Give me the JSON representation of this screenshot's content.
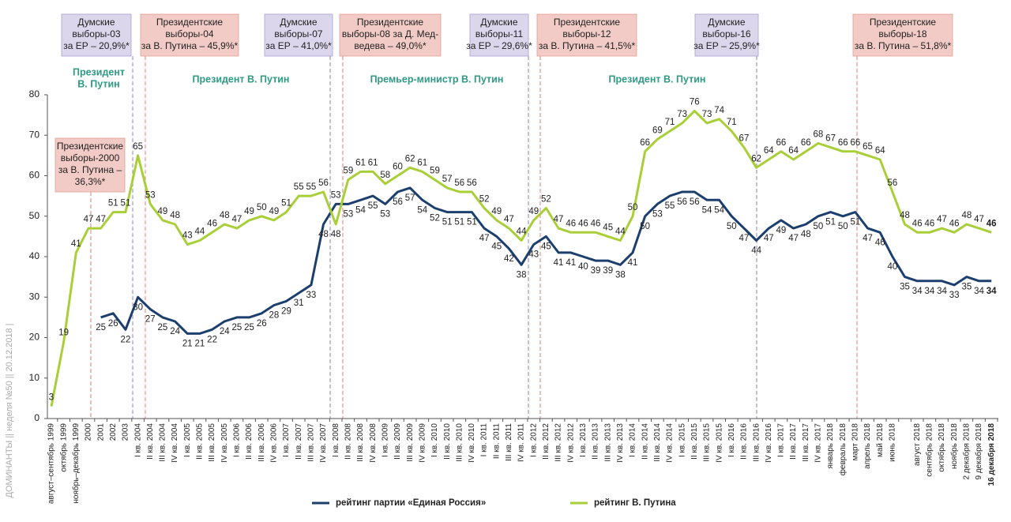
{
  "chart_data": {
    "type": "line",
    "categories": [
      "август–сентябрь 1999",
      "октябрь 1999",
      "ноябрь–декабрь 1999",
      "2000",
      "2001",
      "2002",
      "2003",
      "I кв. 2004",
      "II кв. 2004",
      "III кв. 2004",
      "IV кв. 2004",
      "I кв. 2005",
      "II кв. 2005",
      "III кв. 2005",
      "IV кв. 2005",
      "I кв. 2006",
      "II кв. 2006",
      "III кв. 2006",
      "IV кв. 2006",
      "I кв. 2007",
      "II кв. 2007",
      "III кв. 2007",
      "IV кв. 2007",
      "I кв. 2008",
      "II кв. 2008",
      "III кв. 2008",
      "IV кв. 2008",
      "I кв. 2009",
      "II кв. 2009",
      "III кв. 2009",
      "IV кв. 2009",
      "I кв. 2010",
      "II кв. 2010",
      "III кв. 2010",
      "IV кв. 2010",
      "I кв. 2011",
      "II кв. 2011",
      "III кв. 2011",
      "IV кв. 2011",
      "I кв. 2012",
      "II кв. 2012",
      "III кв. 2012",
      "IV кв. 2012",
      "I кв. 2013",
      "II кв. 2013",
      "III кв. 2013",
      "IV кв. 2013",
      "I кв. 2014",
      "II кв. 2014",
      "III кв. 2014",
      "IV кв. 2014",
      "I кв. 2015",
      "II кв. 2015",
      "III кв. 2015",
      "IV кв. 2015",
      "I кв. 2016",
      "II кв. 2016",
      "III кв. 2016",
      "IV кв. 2016",
      "I кв. 2017",
      "II кв. 2017",
      "III кв. 2017",
      "IV кв. 2017",
      "январь 2018",
      "февраль 2018",
      "март 2018",
      "апрель 2018",
      "май 2018",
      "июнь 2018",
      null,
      "август 2018",
      "сентябрь 2018",
      "октябрь 2018",
      "ноябрь 2018",
      "2 декабря 2018",
      "9 декабря 2018",
      "16 декабря 2018"
    ],
    "series": [
      {
        "name": "рейтинг партии «Единая Россия»",
        "color": "#1c3f6e",
        "values": [
          null,
          null,
          null,
          null,
          25,
          26,
          22,
          30,
          27,
          25,
          24,
          21,
          21,
          22,
          24,
          25,
          25,
          26,
          28,
          29,
          31,
          33,
          48,
          53,
          53,
          54,
          55,
          53,
          56,
          57,
          54,
          52,
          51,
          51,
          51,
          47,
          45,
          42,
          38,
          43,
          45,
          41,
          41,
          40,
          39,
          39,
          38,
          41,
          50,
          53,
          55,
          56,
          56,
          54,
          54,
          50,
          47,
          44,
          47,
          49,
          47,
          48,
          50,
          51,
          50,
          51,
          47,
          46,
          40,
          35,
          34,
          34,
          34,
          33,
          35,
          34,
          34
        ]
      },
      {
        "name": "рейтинг В. Путина",
        "color": "#a9cf38",
        "values": [
          3,
          19,
          41,
          47,
          47,
          51,
          51,
          65,
          53,
          49,
          48,
          43,
          44,
          46,
          48,
          47,
          49,
          50,
          49,
          51,
          55,
          55,
          56,
          48,
          59,
          61,
          61,
          58,
          60,
          62,
          61,
          59,
          57,
          56,
          56,
          52,
          49,
          47,
          44,
          49,
          52,
          47,
          46,
          46,
          46,
          45,
          44,
          50,
          66,
          69,
          71,
          73,
          76,
          73,
          74,
          71,
          67,
          62,
          64,
          66,
          64,
          66,
          68,
          67,
          66,
          66,
          65,
          64,
          56,
          48,
          46,
          46,
          47,
          46,
          48,
          47,
          46
        ]
      }
    ],
    "ylim": [
      0,
      80
    ],
    "yticks": [
      0,
      10,
      20,
      30,
      40,
      50,
      60,
      70,
      80
    ],
    "annotations": [
      {
        "lines": [
          "Думские",
          "выборы-03",
          "за ЕР – 20,9%*"
        ],
        "color": "#dcd6ec",
        "border": "#a99fcd"
      },
      {
        "lines": [
          "Президентские",
          "выборы-04",
          "за В. Путина – 45,9%*"
        ],
        "color": "#f2cbc6",
        "border": "#e39d93"
      },
      {
        "lines": [
          "Думские",
          "выборы-07",
          "за ЕР – 41,0%*"
        ],
        "color": "#dcd6ec",
        "border": "#a99fcd"
      },
      {
        "lines": [
          "Президентские",
          "выборы-08 за Д. Мед-",
          "ведева – 49,0%*"
        ],
        "color": "#f2cbc6",
        "border": "#e39d93"
      },
      {
        "lines": [
          "Думские",
          "выборы-11",
          "за ЕР – 29,6%*"
        ],
        "color": "#dcd6ec",
        "border": "#a99fcd"
      },
      {
        "lines": [
          "Президентские",
          "выборы-12",
          "за В. Путина – 41,5%*"
        ],
        "color": "#f2cbc6",
        "border": "#e39d93"
      },
      {
        "lines": [
          "Думские",
          "выборы-16",
          "за ЕР – 25,9%*"
        ],
        "color": "#dcd6ec",
        "border": "#a99fcd"
      },
      {
        "lines": [
          "Президентские",
          "выборы-18",
          "за В. Путина – 51,8%*"
        ],
        "color": "#f2cbc6",
        "border": "#e39d93"
      },
      {
        "lines": [
          "Президентские",
          "выборы-2000",
          "за В. Путина –",
          "36,3%*"
        ],
        "color": "#f2cbc6",
        "border": "#e39d93"
      }
    ],
    "periods": [
      {
        "lines": [
          "Президент",
          "В. Путин"
        ]
      },
      {
        "lines": [
          "Президент В. Путин"
        ]
      },
      {
        "lines": [
          "Премьер-министр В. Путин"
        ]
      },
      {
        "lines": [
          "Президент В. Путин"
        ]
      }
    ],
    "period_color": "#2e9a83",
    "sidebar": "ДОМИНАНТЫ || неделя №50 || 20.12.2018 |"
  }
}
